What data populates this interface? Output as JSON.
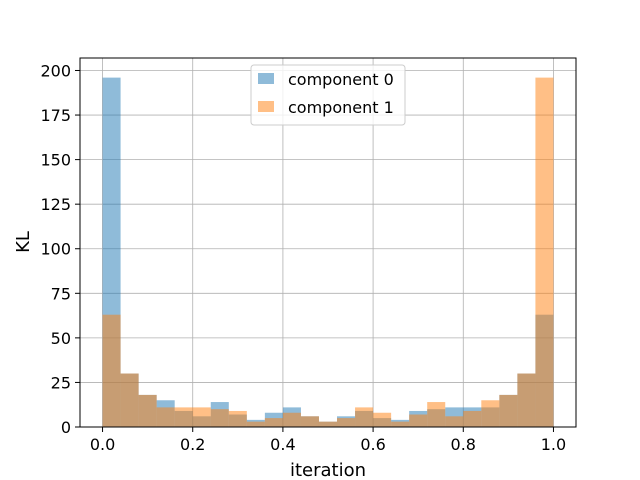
{
  "chart_data": {
    "type": "bar",
    "title": "",
    "xlabel": "iteration",
    "ylabel": "KL",
    "xlim": [
      -0.05,
      1.05
    ],
    "ylim": [
      0,
      207
    ],
    "x_ticks": [
      0.0,
      0.2,
      0.4,
      0.6,
      0.8,
      1.0
    ],
    "x_tick_labels": [
      "0.0",
      "0.2",
      "0.4",
      "0.6",
      "0.8",
      "1.0"
    ],
    "y_ticks": [
      0,
      25,
      50,
      75,
      100,
      125,
      150,
      175,
      200
    ],
    "y_tick_labels": [
      "0",
      "25",
      "50",
      "75",
      "100",
      "125",
      "150",
      "175",
      "200"
    ],
    "grid": true,
    "legend_position": "top-center",
    "bin_edges": [
      0.0,
      0.04,
      0.08,
      0.12,
      0.16,
      0.2,
      0.24,
      0.28,
      0.32,
      0.36,
      0.4,
      0.44,
      0.48,
      0.52,
      0.56,
      0.6,
      0.64,
      0.68,
      0.72,
      0.76,
      0.8,
      0.84,
      0.88,
      0.92,
      0.96,
      1.0
    ],
    "series": [
      {
        "name": "component 0",
        "color": "#1f77b4",
        "values": [
          196,
          30,
          18,
          15,
          9,
          6,
          14,
          7,
          4,
          8,
          11,
          6,
          3,
          6,
          9,
          5,
          4,
          9,
          10,
          11,
          11,
          11,
          18,
          30,
          63
        ]
      },
      {
        "name": "component 1",
        "color": "#ff7f0e",
        "values": [
          63,
          30,
          18,
          11,
          11,
          11,
          10,
          9,
          3,
          5,
          8,
          6,
          3,
          5,
          11,
          8,
          3,
          7,
          14,
          6,
          9,
          15,
          18,
          30,
          196
        ]
      }
    ]
  }
}
